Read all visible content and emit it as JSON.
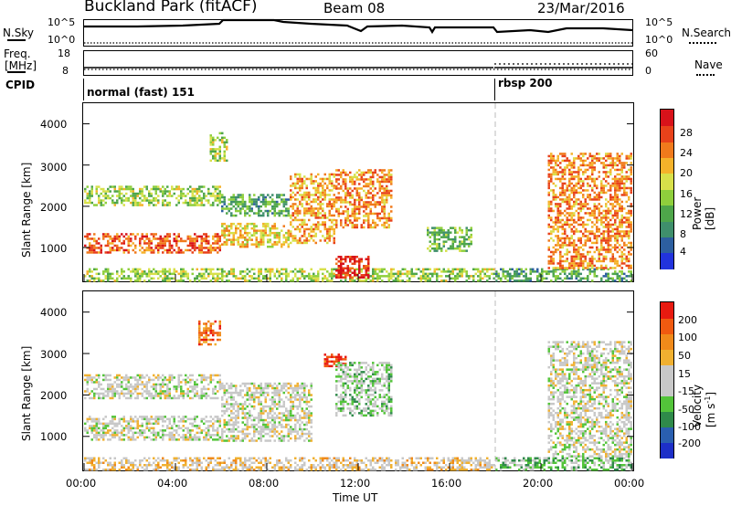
{
  "header": {
    "site": "Buckland Park (fitACF)",
    "beam": "Beam 08",
    "date": "23/Mar/2016"
  },
  "top_panels": {
    "nsky_label": "N.Sky",
    "nsky_ticks": [
      "10^5",
      "10^0"
    ],
    "nsky_right_ticks": [
      "10^5",
      "10^0"
    ],
    "nsearch_label": "N.Search",
    "freq_label": "Freq.",
    "freq_unit": "[MHz]",
    "freq_ticks": [
      "18",
      "8"
    ],
    "nave_label": "Nave",
    "nave_ticks": [
      "60",
      "0"
    ],
    "cpid_label": "CPID",
    "cpid_modes": [
      "normal (fast) 151",
      "rbsp 200"
    ]
  },
  "axes": {
    "ylabel": "Slant Range [km]",
    "yticks": [
      "4000",
      "3000",
      "2000",
      "1000"
    ],
    "xticks": [
      "00:00",
      "04:00",
      "08:00",
      "12:00",
      "16:00",
      "20:00",
      "00:00"
    ],
    "xlabel": "Time UT"
  },
  "power_colorbar": {
    "label": "Power [dB]",
    "ticks": [
      "28",
      "24",
      "20",
      "16",
      "12",
      "8",
      "4"
    ],
    "colors": [
      "#2233dd",
      "#2d5fa0",
      "#3f8f6c",
      "#4ea64a",
      "#8fcf3c",
      "#d8e04a",
      "#f5b22a",
      "#f07a1c",
      "#e8421a",
      "#d8121a"
    ]
  },
  "velocity_colorbar": {
    "label": "Velocity [m s",
    "label_sup": "-1",
    "label_tail": "]",
    "ticks": [
      "200",
      "100",
      "50",
      "15",
      "-15",
      "-50",
      "-100",
      "-200"
    ],
    "colors": [
      "#1d2fc8",
      "#2a5fb0",
      "#2f8a4a",
      "#53c43a",
      "#c8c8c8",
      "#c8c8c8",
      "#f0b030",
      "#f08a1a",
      "#f05a10",
      "#e81a10"
    ]
  },
  "chart_data": [
    {
      "type": "heatmap",
      "title": "Power [dB]",
      "xlabel": "Time UT",
      "ylabel": "Slant Range [km]",
      "xlim": [
        "00:00",
        "24:00"
      ],
      "ylim": [
        180,
        4500
      ],
      "x_ticks": [
        "00:00",
        "04:00",
        "08:00",
        "12:00",
        "16:00",
        "20:00",
        "00:00"
      ],
      "y_ticks": [
        1000,
        2000,
        3000,
        4000
      ],
      "color_range_db": [
        0,
        30
      ],
      "mode_change_time": "18:00",
      "regions": [
        {
          "t_start": 0.0,
          "t_end": 6.0,
          "range_km": [
            900,
            1350
          ],
          "power_db": 24
        },
        {
          "t_start": 0.0,
          "t_end": 6.0,
          "range_km": [
            2050,
            2500
          ],
          "power_db": 14
        },
        {
          "t_start": 0.0,
          "t_end": 18.0,
          "range_km": [
            200,
            500
          ],
          "power_db": 14
        },
        {
          "t_start": 5.5,
          "t_end": 6.2,
          "range_km": [
            3100,
            3800
          ],
          "power_db": 14
        },
        {
          "t_start": 6.0,
          "t_end": 9.0,
          "range_km": [
            1000,
            1600
          ],
          "power_db": 18
        },
        {
          "t_start": 6.0,
          "t_end": 9.0,
          "range_km": [
            1800,
            2300
          ],
          "power_db": 10
        },
        {
          "t_start": 9.0,
          "t_end": 11.0,
          "range_km": [
            1100,
            2800
          ],
          "power_db": 20
        },
        {
          "t_start": 11.0,
          "t_end": 12.5,
          "range_km": [
            300,
            800
          ],
          "power_db": 28
        },
        {
          "t_start": 11.0,
          "t_end": 13.5,
          "range_km": [
            1500,
            2900
          ],
          "power_db": 22
        },
        {
          "t_start": 15.0,
          "t_end": 17.0,
          "range_km": [
            900,
            1500
          ],
          "power_db": 12
        },
        {
          "t_start": 18.0,
          "t_end": 24.0,
          "range_km": [
            200,
            500
          ],
          "power_db": 10
        },
        {
          "t_start": 20.3,
          "t_end": 24.0,
          "range_km": [
            500,
            3300
          ],
          "power_db": 22
        }
      ]
    },
    {
      "type": "heatmap",
      "title": "Velocity [m s-1]",
      "xlabel": "Time UT",
      "ylabel": "Slant Range [km]",
      "xlim": [
        "00:00",
        "24:00"
      ],
      "ylim": [
        180,
        4500
      ],
      "x_ticks": [
        "00:00",
        "04:00",
        "08:00",
        "12:00",
        "16:00",
        "20:00",
        "00:00"
      ],
      "y_ticks": [
        1000,
        2000,
        3000,
        4000
      ],
      "color_range_ms": [
        -250,
        250
      ],
      "mode_change_time": "18:00",
      "regions": [
        {
          "t_start": 0.0,
          "t_end": 6.0,
          "range_km": [
            900,
            1500
          ],
          "velocity_ms": 0
        },
        {
          "t_start": 0.0,
          "t_end": 6.0,
          "range_km": [
            1900,
            2500
          ],
          "velocity_ms": 0
        },
        {
          "t_start": 0.0,
          "t_end": 18.0,
          "range_km": [
            200,
            500
          ],
          "velocity_ms": 40
        },
        {
          "t_start": 5.0,
          "t_end": 6.0,
          "range_km": [
            3200,
            3800
          ],
          "velocity_ms": 150
        },
        {
          "t_start": 6.0,
          "t_end": 10.0,
          "range_km": [
            900,
            2300
          ],
          "velocity_ms": 0
        },
        {
          "t_start": 10.5,
          "t_end": 11.5,
          "range_km": [
            2700,
            3000
          ],
          "velocity_ms": 220
        },
        {
          "t_start": 11.0,
          "t_end": 13.5,
          "range_km": [
            1500,
            2800
          ],
          "velocity_ms": -40
        },
        {
          "t_start": 18.0,
          "t_end": 24.0,
          "range_km": [
            200,
            500
          ],
          "velocity_ms": -60
        },
        {
          "t_start": 20.3,
          "t_end": 24.0,
          "range_km": [
            500,
            3300
          ],
          "velocity_ms": 0
        }
      ]
    }
  ]
}
